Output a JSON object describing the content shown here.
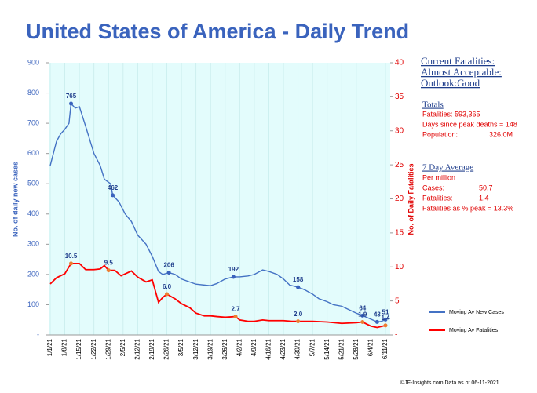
{
  "chart_data": {
    "type": "line",
    "title": "United States of America - Daily Trend",
    "y_label": "No. of daily new  cases",
    "y2_label": "No. of Daily Fatalities",
    "ylim": [
      0,
      900
    ],
    "yticks": [
      {
        "value": 0,
        "label": "-"
      },
      100,
      200,
      300,
      400,
      500,
      600,
      700,
      800,
      900
    ],
    "y2lim": [
      0,
      40
    ],
    "y2ticks": [
      {
        "value": 0,
        "label": "-"
      },
      5,
      10,
      15,
      20,
      25,
      30,
      35,
      40
    ],
    "xticks": [
      "1/1/21",
      "1/8/21",
      "1/15/21",
      "1/22/21",
      "1/29/21",
      "2/5/21",
      "2/12/21",
      "2/19/21",
      "2/26/21",
      "3/5/21",
      "3/12/21",
      "3/19/21",
      "3/26/21",
      "4/2/21",
      "4/9/21",
      "4/16/21",
      "4/23/21",
      "4/30/21",
      "5/7/21",
      "5/14/21",
      "5/21/21",
      "5/28/21",
      "6/4/21",
      "6/11/21"
    ],
    "grid": true,
    "background": "#e3fcfc",
    "series": [
      {
        "name": "Moving Av New Cases",
        "color": "#4472c4",
        "axis": "y",
        "x": [
          "1/1/21",
          "1/4/21",
          "1/6/21",
          "1/8/21",
          "1/10/21",
          "1/11/21",
          "1/13/21",
          "1/15/21",
          "1/18/21",
          "1/22/21",
          "1/25/21",
          "1/27/21",
          "1/30/21",
          "1/31/21",
          "2/3/21",
          "2/6/21",
          "2/9/21",
          "2/12/21",
          "2/16/21",
          "2/19/21",
          "2/22/21",
          "2/24/21",
          "2/27/21",
          "3/2/21",
          "3/5/21",
          "3/9/21",
          "3/12/21",
          "3/16/21",
          "3/19/21",
          "3/22/21",
          "3/26/21",
          "3/30/21",
          "4/2/21",
          "4/6/21",
          "4/9/21",
          "4/13/21",
          "4/16/21",
          "4/20/21",
          "4/23/21",
          "4/26/21",
          "4/30/21",
          "5/3/21",
          "5/7/21",
          "5/10/21",
          "5/14/21",
          "5/17/21",
          "5/21/21",
          "5/24/21",
          "5/28/21",
          "5/31/21",
          "6/3/21",
          "6/7/21",
          "6/9/21",
          "6/11/21"
        ],
        "values": [
          560,
          640,
          665,
          680,
          700,
          765,
          750,
          755,
          690,
          600,
          560,
          515,
          500,
          462,
          440,
          400,
          375,
          330,
          300,
          260,
          210,
          200,
          206,
          200,
          185,
          175,
          168,
          165,
          163,
          170,
          185,
          192,
          192,
          195,
          200,
          215,
          210,
          200,
          185,
          165,
          158,
          150,
          135,
          120,
          110,
          100,
          95,
          85,
          72,
          64,
          55,
          43,
          45,
          51
        ],
        "labels": [
          {
            "x": "1/11/21",
            "value": 765,
            "label": "765"
          },
          {
            "x": "1/31/21",
            "value": 462,
            "label": "462"
          },
          {
            "x": "2/27/21",
            "value": 206,
            "label": "206"
          },
          {
            "x": "3/30/21",
            "value": 192,
            "label": "192"
          },
          {
            "x": "4/30/21",
            "value": 158,
            "label": "158"
          },
          {
            "x": "5/31/21",
            "value": 64,
            "label": "64"
          },
          {
            "x": "6/7/21",
            "value": 43,
            "label": "43"
          },
          {
            "x": "6/11/21",
            "value": 51,
            "label": "51"
          }
        ]
      },
      {
        "name": "Moving Av Fatalities",
        "color": "#ff0000",
        "axis": "y2",
        "x": [
          "1/1/21",
          "1/4/21",
          "1/8/21",
          "1/11/21",
          "1/15/21",
          "1/18/21",
          "1/22/21",
          "1/25/21",
          "1/27/21",
          "1/29/21",
          "2/1/21",
          "2/4/21",
          "2/9/21",
          "2/12/21",
          "2/16/21",
          "2/19/21",
          "2/22/21",
          "2/24/21",
          "2/26/21",
          "3/2/21",
          "3/5/21",
          "3/9/21",
          "3/12/21",
          "3/16/21",
          "3/19/21",
          "3/22/21",
          "3/26/21",
          "3/31/21",
          "4/2/21",
          "4/6/21",
          "4/9/21",
          "4/13/21",
          "4/16/21",
          "4/20/21",
          "4/23/21",
          "4/27/21",
          "4/30/21",
          "5/7/21",
          "5/14/21",
          "5/21/21",
          "5/28/21",
          "5/31/21",
          "6/4/21",
          "6/7/21",
          "6/11/21"
        ],
        "values": [
          7.5,
          8.4,
          9.0,
          10.5,
          10.5,
          9.6,
          9.6,
          9.7,
          10.2,
          9.5,
          9.5,
          8.7,
          9.4,
          8.5,
          7.8,
          8.1,
          4.8,
          5.5,
          6.0,
          5.3,
          4.6,
          4.0,
          3.2,
          2.8,
          2.8,
          2.7,
          2.6,
          2.7,
          2.2,
          2.0,
          2.0,
          2.2,
          2.1,
          2.1,
          2.1,
          2.0,
          2.0,
          2.0,
          1.9,
          1.7,
          1.8,
          1.9,
          1.3,
          1.1,
          1.4
        ],
        "labels": [
          {
            "x": "1/11/21",
            "value": 10.5,
            "label": "10.5"
          },
          {
            "x": "1/29/21",
            "value": 9.5,
            "label": "9.5"
          },
          {
            "x": "2/26/21",
            "value": 6.0,
            "label": "6.0"
          },
          {
            "x": "3/31/21",
            "value": 2.7,
            "label": "2.7"
          },
          {
            "x": "4/30/21",
            "value": 2.0,
            "label": "2.0"
          },
          {
            "x": "5/31/21",
            "value": 1.9,
            "label": "1.9"
          },
          {
            "x": "6/11/21",
            "value": 1.4,
            "label": "1.4"
          }
        ]
      }
    ]
  },
  "side_panel": {
    "status": [
      "Current Fatalities:",
      "Almost Acceptable:",
      "Outlook:Good"
    ],
    "totals_heading": "Totals",
    "totals": [
      "Fatalities: 593,365",
      "Days since peak deaths = 148"
    ],
    "population_label": "Population:",
    "population_value": "326.0M",
    "average_heading": "7 Day Average",
    "per_million": "Per million",
    "cases_label": "Cases:",
    "cases_value": "50.7",
    "fatalities_label": "Fatalities:",
    "fatalities_value": "1.4",
    "fatalities_peak": "Fatalities as % peak = 13.3%"
  },
  "footer": "©JF-Insights.com  Data as of 06-11-2021"
}
